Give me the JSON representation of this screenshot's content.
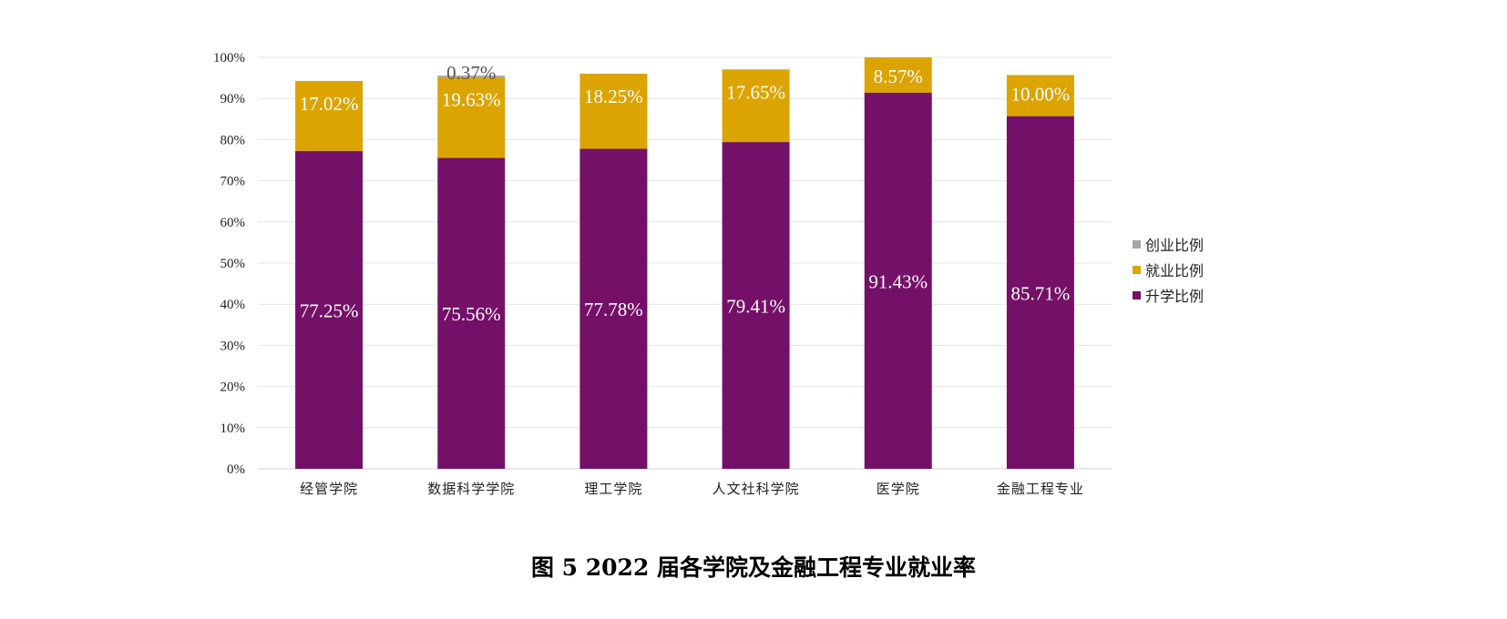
{
  "chart_data": {
    "type": "bar",
    "stacked": true,
    "title": "图 5  2022 届各学院及金融工程专业就业率",
    "categories": [
      "经管学院",
      "数据科学学院",
      "理工学院",
      "人文社科学院",
      "医学院",
      "金融工程专业"
    ],
    "series": [
      {
        "name": "升学比例",
        "color": "#751068",
        "values": [
          77.25,
          75.56,
          77.78,
          79.41,
          91.43,
          85.71
        ],
        "labels": [
          "77.25%",
          "75.56%",
          "77.78%",
          "79.41%",
          "91.43%",
          "85.71%"
        ]
      },
      {
        "name": "就业比例",
        "color": "#DBA400",
        "values": [
          17.02,
          19.63,
          18.25,
          17.65,
          8.57,
          10.0
        ],
        "labels": [
          "17.02%",
          "19.63%",
          "18.25%",
          "17.65%",
          "8.57%",
          "10.00%"
        ]
      },
      {
        "name": "创业比例",
        "color": "#A5A5A5",
        "values": [
          0,
          0.37,
          0,
          0,
          0,
          0
        ],
        "labels": [
          "",
          "0.37%",
          "",
          "",
          "",
          ""
        ]
      }
    ],
    "ylim": [
      0,
      100
    ],
    "yticks": [
      "0%",
      "10%",
      "20%",
      "30%",
      "40%",
      "50%",
      "60%",
      "70%",
      "80%",
      "90%",
      "100%"
    ],
    "grid": true,
    "legend": {
      "position": "right",
      "entries": [
        "创业比例",
        "就业比例",
        "升学比例"
      ],
      "colors": [
        "#A5A5A5",
        "#DBA400",
        "#751068"
      ]
    }
  }
}
